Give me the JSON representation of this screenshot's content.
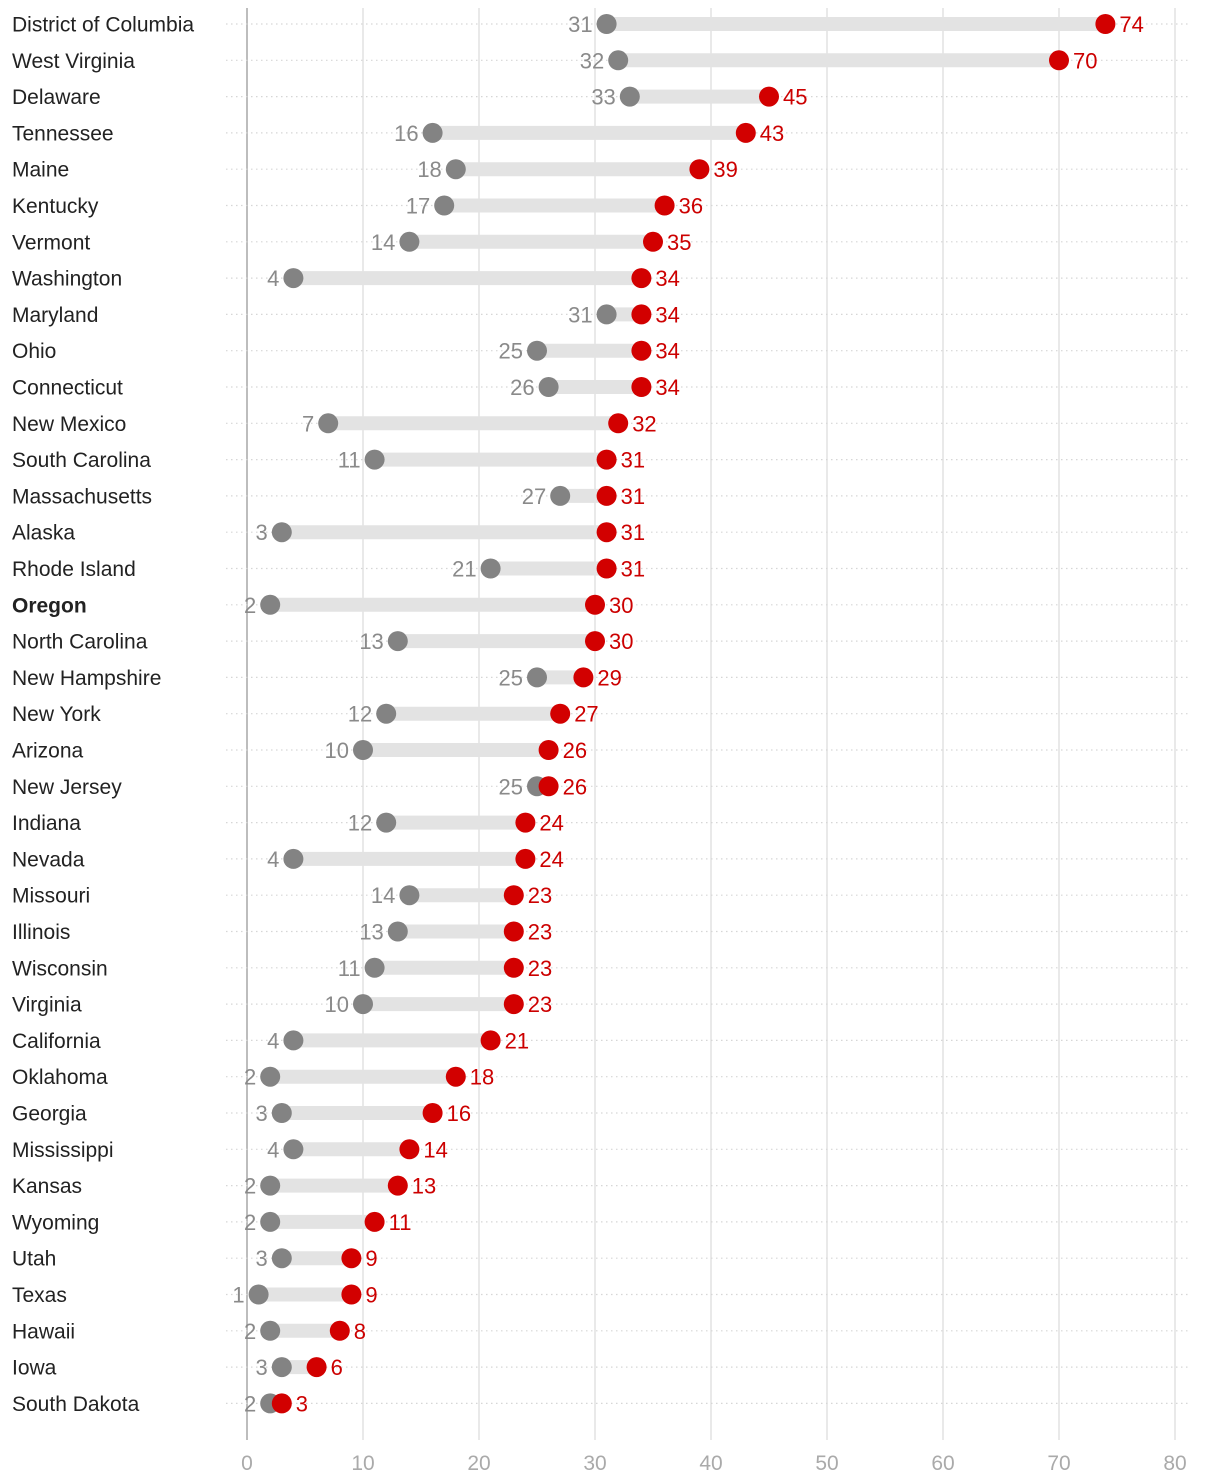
{
  "chart_data": {
    "type": "dot-range",
    "xlim": [
      0,
      80
    ],
    "x_ticks": [
      0,
      10,
      20,
      30,
      40,
      50,
      60,
      70,
      80
    ],
    "highlight": "Oregon",
    "colors": {
      "start": "#838383",
      "end": "#d20000",
      "bar": "#e3e3e3",
      "start_label": "#8a8a8a",
      "end_label": "#cc0000"
    },
    "rows": [
      {
        "state": "District of Columbia",
        "start": 31,
        "end": 74
      },
      {
        "state": "West Virginia",
        "start": 32,
        "end": 70
      },
      {
        "state": "Delaware",
        "start": 33,
        "end": 45
      },
      {
        "state": "Tennessee",
        "start": 16,
        "end": 43
      },
      {
        "state": "Maine",
        "start": 18,
        "end": 39
      },
      {
        "state": "Kentucky",
        "start": 17,
        "end": 36
      },
      {
        "state": "Vermont",
        "start": 14,
        "end": 35
      },
      {
        "state": "Washington",
        "start": 4,
        "end": 34
      },
      {
        "state": "Maryland",
        "start": 31,
        "end": 34
      },
      {
        "state": "Ohio",
        "start": 25,
        "end": 34
      },
      {
        "state": "Connecticut",
        "start": 26,
        "end": 34
      },
      {
        "state": "New Mexico",
        "start": 7,
        "end": 32
      },
      {
        "state": "South Carolina",
        "start": 11,
        "end": 31
      },
      {
        "state": "Massachusetts",
        "start": 27,
        "end": 31
      },
      {
        "state": "Alaska",
        "start": 3,
        "end": 31
      },
      {
        "state": "Rhode Island",
        "start": 21,
        "end": 31
      },
      {
        "state": "Oregon",
        "start": 2,
        "end": 30
      },
      {
        "state": "North Carolina",
        "start": 13,
        "end": 30
      },
      {
        "state": "New Hampshire",
        "start": 25,
        "end": 29
      },
      {
        "state": "New York",
        "start": 12,
        "end": 27
      },
      {
        "state": "Arizona",
        "start": 10,
        "end": 26
      },
      {
        "state": "New Jersey",
        "start": 25,
        "end": 26
      },
      {
        "state": "Indiana",
        "start": 12,
        "end": 24
      },
      {
        "state": "Nevada",
        "start": 4,
        "end": 24
      },
      {
        "state": "Missouri",
        "start": 14,
        "end": 23
      },
      {
        "state": "Illinois",
        "start": 13,
        "end": 23
      },
      {
        "state": "Wisconsin",
        "start": 11,
        "end": 23
      },
      {
        "state": "Virginia",
        "start": 10,
        "end": 23
      },
      {
        "state": "California",
        "start": 4,
        "end": 21
      },
      {
        "state": "Oklahoma",
        "start": 2,
        "end": 18
      },
      {
        "state": "Georgia",
        "start": 3,
        "end": 16
      },
      {
        "state": "Mississippi",
        "start": 4,
        "end": 14
      },
      {
        "state": "Kansas",
        "start": 2,
        "end": 13
      },
      {
        "state": "Wyoming",
        "start": 2,
        "end": 11
      },
      {
        "state": "Utah",
        "start": 3,
        "end": 9
      },
      {
        "state": "Texas",
        "start": 1,
        "end": 9
      },
      {
        "state": "Hawaii",
        "start": 2,
        "end": 8
      },
      {
        "state": "Iowa",
        "start": 3,
        "end": 6
      },
      {
        "state": "South Dakota",
        "start": 2,
        "end": 3
      }
    ]
  }
}
